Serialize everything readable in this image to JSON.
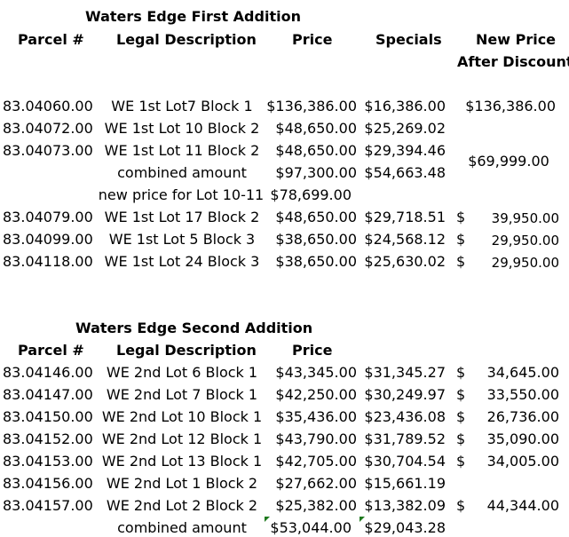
{
  "first": {
    "title": "Waters Edge First Addition",
    "headers": {
      "parcel": "Parcel #",
      "legal": "Legal Description",
      "price": "Price",
      "specials": "Specials",
      "new_price_1": "New Price",
      "new_price_2": "After Discount"
    },
    "rows": [
      {
        "parcel": "83.04060.00",
        "legal": "WE 1st Lot7 Block 1",
        "price": "$136,386.00",
        "specials": "$16,386.00",
        "new_price": "$136,386.00"
      },
      {
        "parcel": "83.04072.00",
        "legal": "WE 1st Lot 10 Block 2",
        "price": "$48,650.00",
        "specials": "$25,269.02"
      },
      {
        "parcel": "83.04073.00",
        "legal": "WE 1st Lot 11 Block 2",
        "price": "$48,650.00",
        "specials": "$29,394.46"
      },
      {
        "legal": "combined amount",
        "price": "$97,300.00",
        "specials": "$54,663.48"
      },
      {
        "legal": "new price for Lot 10-11",
        "price": "$78,699.00"
      },
      {
        "parcel": "83.04079.00",
        "legal": "WE 1st Lot 17 Block 2",
        "price": "$48,650.00",
        "specials": "$29,718.51",
        "currency": "$",
        "new_price": "39,950.00"
      },
      {
        "parcel": "83.04099.00",
        "legal": "WE 1st Lot 5 Block 3",
        "price": "$38,650.00",
        "specials": "$24,568.12",
        "currency": "$",
        "new_price": "29,950.00"
      },
      {
        "parcel": "83.04118.00",
        "legal": "WE 1st Lot 24 Block 3",
        "price": "$38,650.00",
        "specials": "$25,630.02",
        "currency": "$",
        "new_price": "29,950.00"
      }
    ],
    "merged_new_price": "$69,999.00"
  },
  "second": {
    "title": "Waters Edge Second Addition",
    "headers": {
      "parcel": "Parcel #",
      "legal": "Legal Description",
      "price": "Price"
    },
    "rows": [
      {
        "parcel": "83.04146.00",
        "legal": "WE 2nd Lot 6 Block 1",
        "price": "$43,345.00",
        "specials": "$31,345.27",
        "currency": "$",
        "new_price": "34,645.00"
      },
      {
        "parcel": "83.04147.00",
        "legal": "WE 2nd Lot 7 Block 1",
        "price": "$42,250.00",
        "specials": "$30,249.97",
        "currency": "$",
        "new_price": "33,550.00"
      },
      {
        "parcel": "83.04150.00",
        "legal": "WE 2nd Lot 10 Block 1",
        "price": "$35,436.00",
        "specials": "$23,436.08",
        "currency": "$",
        "new_price": "26,736.00"
      },
      {
        "parcel": "83.04152.00",
        "legal": "WE 2nd Lot 12 Block 1",
        "price": "$43,790.00",
        "specials": "$31,789.52",
        "currency": "$",
        "new_price": "35,090.00"
      },
      {
        "parcel": "83.04153.00",
        "legal": "WE 2nd Lot 13 Block 1",
        "price": "$42,705.00",
        "specials": "$30,704.54",
        "currency": "$",
        "new_price": "34,005.00"
      },
      {
        "parcel": "83.04156.00",
        "legal": "WE 2nd Lot 1 Block 2",
        "price": "$27,662.00",
        "specials": "$15,661.19"
      },
      {
        "parcel": "83.04157.00",
        "legal": "WE 2nd Lot 2 Block 2",
        "price": "$25,382.00",
        "specials": "$13,382.09",
        "currency": "$",
        "new_price": "44,344.00"
      },
      {
        "legal": "combined amount",
        "price": "$53,044.00",
        "specials": "$29,043.28"
      }
    ]
  }
}
